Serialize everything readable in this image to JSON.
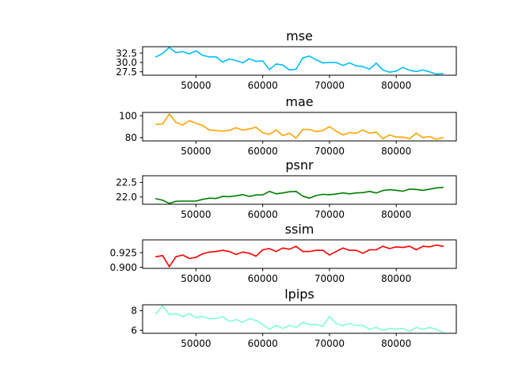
{
  "chart_data": [
    {
      "type": "line",
      "title": "mse",
      "color": "#00bfff",
      "xlim": [
        42000,
        89000
      ],
      "ylim": [
        26.6,
        34.2
      ],
      "xticks": [
        50000,
        60000,
        70000,
        80000
      ],
      "xtick_labels": [
        "50000",
        "60000",
        "70000",
        "80000"
      ],
      "yticks": [
        27.5,
        30.0,
        32.5
      ],
      "ytick_labels": [
        "27.5",
        "30.0",
        "32.5"
      ],
      "x": [
        44000,
        45000,
        46000,
        47000,
        48000,
        49000,
        50000,
        51000,
        52000,
        53000,
        54000,
        55000,
        56000,
        57000,
        58000,
        59000,
        60000,
        61000,
        62000,
        63000,
        64000,
        65000,
        66000,
        67000,
        68000,
        69000,
        70000,
        71000,
        72000,
        73000,
        74000,
        75000,
        76000,
        77000,
        78000,
        79000,
        80000,
        81000,
        82000,
        83000,
        84000,
        85000,
        86000,
        87000
      ],
      "values": [
        31.5,
        32.4,
        34.0,
        32.6,
        32.9,
        32.3,
        33.1,
        31.9,
        31.5,
        31.5,
        30.1,
        30.9,
        30.5,
        29.9,
        31.0,
        30.3,
        30.4,
        28.1,
        29.6,
        29.3,
        28.0,
        28.2,
        31.2,
        31.7,
        30.7,
        29.9,
        30.0,
        30.0,
        29.2,
        29.9,
        29.1,
        28.9,
        28.2,
        29.8,
        28.0,
        27.4,
        27.7,
        28.7,
        27.9,
        27.6,
        28.0,
        27.5,
        26.9,
        27.0
      ]
    },
    {
      "type": "line",
      "title": "mae",
      "color": "#ffa500",
      "xlim": [
        42000,
        89000
      ],
      "ylim": [
        77.0,
        103.0
      ],
      "xticks": [
        50000,
        60000,
        70000,
        80000
      ],
      "xtick_labels": [
        "50000",
        "60000",
        "70000",
        "80000"
      ],
      "yticks": [
        80,
        100
      ],
      "ytick_labels": [
        "80",
        "100"
      ],
      "x": [
        44000,
        45000,
        46000,
        47000,
        48000,
        49000,
        50000,
        51000,
        52000,
        53000,
        54000,
        55000,
        56000,
        57000,
        58000,
        59000,
        60000,
        61000,
        62000,
        63000,
        64000,
        65000,
        66000,
        67000,
        68000,
        69000,
        70000,
        71000,
        72000,
        73000,
        74000,
        75000,
        76000,
        77000,
        78000,
        79000,
        80000,
        81000,
        82000,
        83000,
        84000,
        85000,
        86000,
        87000
      ],
      "values": [
        92.0,
        92.5,
        101.5,
        94.0,
        91.5,
        95.5,
        93.0,
        91.0,
        87.0,
        86.5,
        86.0,
        86.5,
        89.0,
        87.0,
        88.0,
        89.5,
        84.5,
        83.0,
        87.0,
        82.0,
        84.0,
        79.5,
        87.5,
        87.5,
        85.5,
        86.5,
        90.0,
        86.0,
        82.5,
        84.5,
        84.0,
        87.0,
        84.0,
        85.0,
        79.0,
        82.5,
        80.5,
        80.5,
        79.0,
        84.0,
        80.0,
        81.0,
        78.5,
        80.0
      ]
    },
    {
      "type": "line",
      "title": "psnr",
      "color": "#008000",
      "xlim": [
        42000,
        89000
      ],
      "ylim": [
        21.75,
        22.73
      ],
      "xticks": [
        50000,
        60000,
        70000,
        80000
      ],
      "xtick_labels": [
        "50000",
        "60000",
        "70000",
        "80000"
      ],
      "yticks": [
        22.0,
        22.5
      ],
      "ytick_labels": [
        "22.0",
        "22.5"
      ],
      "x": [
        44000,
        45000,
        46000,
        47000,
        48000,
        49000,
        50000,
        51000,
        52000,
        53000,
        54000,
        55000,
        56000,
        57000,
        58000,
        59000,
        60000,
        61000,
        62000,
        63000,
        64000,
        65000,
        66000,
        67000,
        68000,
        69000,
        70000,
        71000,
        72000,
        73000,
        74000,
        75000,
        76000,
        77000,
        78000,
        79000,
        80000,
        81000,
        82000,
        83000,
        84000,
        85000,
        86000,
        87000
      ],
      "values": [
        21.94,
        21.89,
        21.78,
        21.85,
        21.86,
        21.86,
        21.86,
        21.92,
        21.96,
        21.95,
        22.02,
        22.01,
        22.04,
        22.08,
        22.02,
        22.07,
        22.07,
        22.19,
        22.11,
        22.14,
        22.18,
        22.19,
        22.03,
        21.96,
        22.05,
        22.09,
        22.08,
        22.1,
        22.14,
        22.11,
        22.14,
        22.15,
        22.19,
        22.14,
        22.22,
        22.25,
        22.23,
        22.2,
        22.27,
        22.26,
        22.23,
        22.27,
        22.31,
        22.33
      ]
    },
    {
      "type": "line",
      "title": "ssim",
      "color": "#ff0000",
      "xlim": [
        42000,
        89000
      ],
      "ylim": [
        0.898,
        0.947
      ],
      "xticks": [
        50000,
        60000,
        70000,
        80000
      ],
      "xtick_labels": [
        "50000",
        "60000",
        "70000",
        "80000"
      ],
      "yticks": [
        0.9,
        0.925
      ],
      "ytick_labels": [
        "0.900",
        "0.925"
      ],
      "x": [
        44000,
        45000,
        46000,
        47000,
        48000,
        49000,
        50000,
        51000,
        52000,
        53000,
        54000,
        55000,
        56000,
        57000,
        58000,
        59000,
        60000,
        61000,
        62000,
        63000,
        64000,
        65000,
        66000,
        67000,
        68000,
        69000,
        70000,
        71000,
        72000,
        73000,
        74000,
        75000,
        76000,
        77000,
        78000,
        79000,
        80000,
        81000,
        82000,
        83000,
        84000,
        85000,
        86000,
        87000
      ],
      "values": [
        0.918,
        0.92,
        0.901,
        0.918,
        0.921,
        0.915,
        0.917,
        0.923,
        0.926,
        0.927,
        0.929,
        0.927,
        0.922,
        0.926,
        0.924,
        0.919,
        0.93,
        0.932,
        0.927,
        0.933,
        0.931,
        0.936,
        0.927,
        0.927,
        0.929,
        0.929,
        0.921,
        0.927,
        0.933,
        0.929,
        0.929,
        0.924,
        0.93,
        0.93,
        0.936,
        0.932,
        0.935,
        0.934,
        0.936,
        0.93,
        0.936,
        0.935,
        0.938,
        0.936
      ]
    },
    {
      "type": "line",
      "title": "lpips",
      "color": "#7fffd4",
      "xlim": [
        42000,
        89000
      ],
      "ylim": [
        5.7,
        8.6
      ],
      "xticks": [
        50000,
        60000,
        70000,
        80000
      ],
      "xtick_labels": [
        "50000",
        "60000",
        "70000",
        "80000"
      ],
      "yticks": [
        6,
        8
      ],
      "ytick_labels": [
        "6",
        "8"
      ],
      "x": [
        44000,
        45000,
        46000,
        47000,
        48000,
        49000,
        50000,
        51000,
        52000,
        53000,
        54000,
        55000,
        56000,
        57000,
        58000,
        59000,
        60000,
        61000,
        62000,
        63000,
        64000,
        65000,
        66000,
        67000,
        68000,
        69000,
        70000,
        71000,
        72000,
        73000,
        74000,
        75000,
        76000,
        77000,
        78000,
        79000,
        80000,
        81000,
        82000,
        83000,
        84000,
        85000,
        86000,
        87000
      ],
      "values": [
        7.7,
        8.5,
        7.6,
        7.7,
        7.4,
        7.7,
        7.3,
        7.4,
        7.2,
        7.2,
        7.4,
        6.9,
        7.1,
        6.8,
        7.2,
        7.0,
        6.6,
        6.1,
        6.5,
        6.2,
        6.5,
        6.3,
        6.8,
        6.6,
        6.6,
        6.4,
        7.4,
        6.7,
        6.5,
        6.7,
        6.5,
        6.5,
        6.1,
        6.3,
        6.0,
        6.2,
        6.1,
        6.2,
        5.9,
        6.3,
        6.1,
        6.3,
        6.1,
        5.8
      ]
    }
  ]
}
